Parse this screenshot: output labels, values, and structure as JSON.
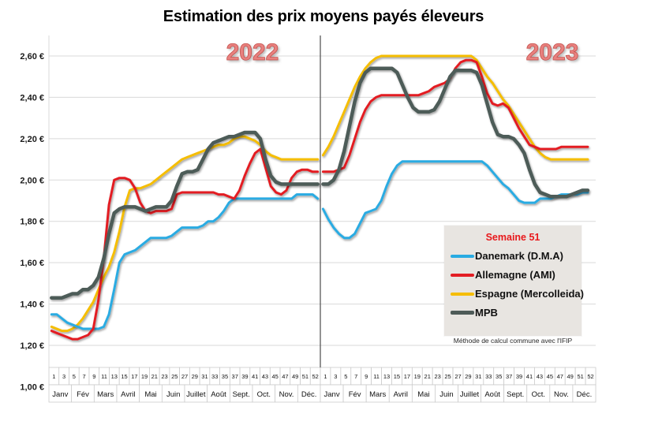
{
  "title": "Estimation des prix moyens payés éleveurs",
  "years": [
    {
      "label": "2022"
    },
    {
      "label": "2023"
    }
  ],
  "legend": {
    "header": "Semaine 51",
    "entries": [
      {
        "label": "Danemark (D.M.A)"
      },
      {
        "label": "Allemagne (AMI)"
      },
      {
        "label": "Espagne (Mercolleida)"
      },
      {
        "label": "MPB"
      }
    ]
  },
  "footnote": "Méthode de calcul commune avec l'IFIP",
  "colors": {
    "danemark": "#29abe2",
    "allemagne": "#e31e24",
    "espagne": "#f5bd02",
    "mpb": "#4e5b58",
    "grid": "#d9d9d9",
    "divider": "#595959",
    "year_label": "#e8817f",
    "legend_background": "#e8e5e1",
    "semaine_red": "#e8191c"
  },
  "chart_data": {
    "type": "line",
    "title": "Estimation des prix moyens payés éleveurs",
    "grid": true,
    "legend_position": "right-middle",
    "annotation_week": "Semaine 51",
    "y_axis": {
      "ylim": [
        1.0,
        2.7
      ],
      "ticks": [
        {
          "label": "2,60 €",
          "value": 2.6
        },
        {
          "label": "2,40 €",
          "value": 2.4
        },
        {
          "label": "2,20 €",
          "value": 2.2
        },
        {
          "label": "2,00 €",
          "value": 2.0
        },
        {
          "label": "1,80 €",
          "value": 1.8
        },
        {
          "label": "1,60 €",
          "value": 1.6
        },
        {
          "label": "1,40 €",
          "value": 1.4
        },
        {
          "label": "1,20 €",
          "value": 1.2
        },
        {
          "label": "1,00 €",
          "value": 1.0
        }
      ]
    },
    "x_axis": {
      "unit": "semaine",
      "weeks_per_year": 52,
      "week_labels": [
        "1",
        "3",
        "5",
        "7",
        "9",
        "11",
        "13",
        "15",
        "17",
        "19",
        "21",
        "23",
        "25",
        "27",
        "29",
        "31",
        "33",
        "35",
        "37",
        "39",
        "41",
        "43",
        "45",
        "47",
        "49",
        "51",
        "52"
      ],
      "months": [
        "Janv",
        "Fév",
        "Mars",
        "Avril",
        "Mai",
        "Juin",
        "Juillet",
        "Août",
        "Sept.",
        "Oct.",
        "Nov.",
        "Déc."
      ],
      "years": [
        "2022",
        "2023"
      ]
    },
    "series": [
      {
        "name": "Danemark (D.M.A)",
        "color": "#29abe2",
        "width": 3,
        "values_2022": [
          1.35,
          1.35,
          1.33,
          1.31,
          1.3,
          1.29,
          1.28,
          1.28,
          1.28,
          1.28,
          1.29,
          1.35,
          1.47,
          1.6,
          1.64,
          1.65,
          1.66,
          1.68,
          1.7,
          1.72,
          1.72,
          1.72,
          1.72,
          1.73,
          1.75,
          1.77,
          1.77,
          1.77,
          1.77,
          1.78,
          1.8,
          1.8,
          1.82,
          1.85,
          1.89,
          1.91,
          1.91,
          1.91,
          1.91,
          1.91,
          1.91,
          1.91,
          1.91,
          1.91,
          1.91,
          1.91,
          1.91,
          1.93,
          1.93,
          1.93,
          1.93,
          1.91
        ],
        "values_2023": [
          1.86,
          1.81,
          1.77,
          1.74,
          1.72,
          1.72,
          1.74,
          1.79,
          1.84,
          1.85,
          1.86,
          1.9,
          1.97,
          2.03,
          2.07,
          2.09,
          2.09,
          2.09,
          2.09,
          2.09,
          2.09,
          2.09,
          2.09,
          2.09,
          2.09,
          2.09,
          2.09,
          2.09,
          2.09,
          2.09,
          2.09,
          2.07,
          2.04,
          2.01,
          1.98,
          1.96,
          1.93,
          1.9,
          1.89,
          1.89,
          1.89,
          1.91,
          1.91,
          1.91,
          1.92,
          1.93,
          1.93,
          1.93,
          1.93,
          1.94,
          1.94
        ]
      },
      {
        "name": "Allemagne (AMI)",
        "color": "#e31e24",
        "width": 3,
        "values_2022": [
          1.27,
          1.26,
          1.25,
          1.24,
          1.23,
          1.23,
          1.24,
          1.25,
          1.28,
          1.42,
          1.62,
          1.88,
          2.0,
          2.01,
          2.01,
          2.0,
          1.96,
          1.89,
          1.85,
          1.84,
          1.85,
          1.85,
          1.85,
          1.86,
          1.93,
          1.94,
          1.94,
          1.94,
          1.94,
          1.94,
          1.94,
          1.94,
          1.93,
          1.93,
          1.92,
          1.91,
          1.95,
          2.02,
          2.08,
          2.13,
          2.15,
          2.06,
          1.97,
          1.94,
          1.93,
          1.95,
          2.01,
          2.04,
          2.05,
          2.05,
          2.04,
          2.04
        ],
        "values_2023": [
          2.04,
          2.04,
          2.04,
          2.05,
          2.06,
          2.12,
          2.2,
          2.28,
          2.34,
          2.38,
          2.4,
          2.41,
          2.41,
          2.41,
          2.41,
          2.41,
          2.41,
          2.41,
          2.41,
          2.42,
          2.43,
          2.45,
          2.46,
          2.47,
          2.49,
          2.54,
          2.57,
          2.58,
          2.58,
          2.57,
          2.5,
          2.42,
          2.37,
          2.36,
          2.37,
          2.35,
          2.3,
          2.25,
          2.21,
          2.17,
          2.16,
          2.15,
          2.15,
          2.15,
          2.15,
          2.16,
          2.16,
          2.16,
          2.16,
          2.16,
          2.16
        ]
      },
      {
        "name": "Espagne (Mercolleida)",
        "color": "#f5bd02",
        "width": 3,
        "values_2022": [
          1.29,
          1.28,
          1.27,
          1.27,
          1.28,
          1.3,
          1.33,
          1.37,
          1.41,
          1.47,
          1.53,
          1.58,
          1.65,
          1.75,
          1.87,
          1.95,
          1.96,
          1.96,
          1.97,
          1.98,
          2.0,
          2.02,
          2.04,
          2.06,
          2.08,
          2.1,
          2.11,
          2.12,
          2.13,
          2.14,
          2.15,
          2.16,
          2.17,
          2.17,
          2.18,
          2.2,
          2.21,
          2.21,
          2.2,
          2.19,
          2.17,
          2.14,
          2.12,
          2.11,
          2.1,
          2.1,
          2.1,
          2.1,
          2.1,
          2.1,
          2.1,
          2.1
        ],
        "values_2023": [
          2.12,
          2.16,
          2.21,
          2.27,
          2.33,
          2.39,
          2.45,
          2.5,
          2.54,
          2.57,
          2.59,
          2.6,
          2.6,
          2.6,
          2.6,
          2.6,
          2.6,
          2.6,
          2.6,
          2.6,
          2.6,
          2.6,
          2.6,
          2.6,
          2.6,
          2.6,
          2.6,
          2.6,
          2.6,
          2.58,
          2.54,
          2.5,
          2.47,
          2.43,
          2.39,
          2.36,
          2.32,
          2.28,
          2.24,
          2.2,
          2.16,
          2.13,
          2.11,
          2.1,
          2.1,
          2.1,
          2.1,
          2.1,
          2.1,
          2.1,
          2.1
        ]
      },
      {
        "name": "MPB",
        "color": "#4e5b58",
        "width": 4.5,
        "values_2022": [
          1.43,
          1.43,
          1.43,
          1.44,
          1.45,
          1.45,
          1.47,
          1.47,
          1.49,
          1.53,
          1.62,
          1.74,
          1.84,
          1.86,
          1.87,
          1.87,
          1.87,
          1.86,
          1.85,
          1.86,
          1.87,
          1.87,
          1.87,
          1.9,
          1.97,
          2.03,
          2.04,
          2.04,
          2.05,
          2.1,
          2.15,
          2.18,
          2.19,
          2.2,
          2.21,
          2.21,
          2.22,
          2.23,
          2.23,
          2.23,
          2.2,
          2.1,
          2.02,
          1.99,
          1.98,
          1.98,
          1.98,
          1.98,
          1.98,
          1.98,
          1.98,
          1.98
        ],
        "values_2023": [
          1.98,
          1.98,
          2.0,
          2.05,
          2.14,
          2.26,
          2.38,
          2.47,
          2.52,
          2.54,
          2.54,
          2.54,
          2.54,
          2.54,
          2.52,
          2.46,
          2.4,
          2.35,
          2.33,
          2.33,
          2.33,
          2.34,
          2.38,
          2.44,
          2.5,
          2.53,
          2.53,
          2.53,
          2.53,
          2.52,
          2.46,
          2.37,
          2.28,
          2.22,
          2.21,
          2.21,
          2.2,
          2.17,
          2.13,
          2.05,
          1.98,
          1.94,
          1.93,
          1.92,
          1.92,
          1.92,
          1.92,
          1.93,
          1.94,
          1.95,
          1.95
        ]
      }
    ]
  }
}
